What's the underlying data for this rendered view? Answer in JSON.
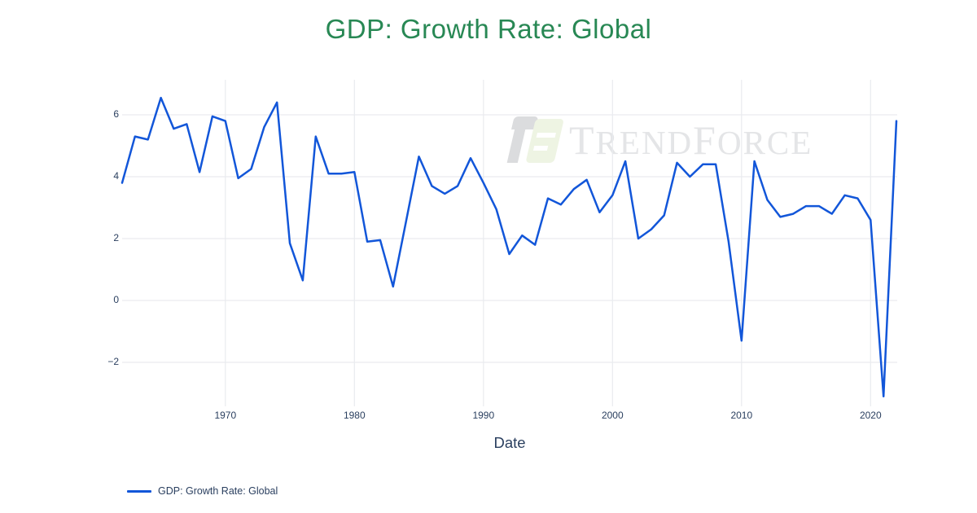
{
  "title": {
    "text": "GDP: Growth Rate: Global",
    "color": "#288854"
  },
  "watermark": {
    "brand": "TrendForce",
    "segments": {
      "t1": "T",
      "t2": "REND",
      "t3": "F",
      "t4": "ORCE"
    },
    "logo_gray": "#d8d9db",
    "logo_green": "#edf3e1",
    "text_color": "#e4e5e7"
  },
  "legend": {
    "label": "GDP: Growth Rate: Global",
    "line_color": "#1256d9"
  },
  "axes": {
    "x_label": "Date"
  },
  "chart_data": {
    "type": "line",
    "title": "GDP: Growth Rate: Global",
    "xlabel": "Date",
    "ylabel": "",
    "grid": true,
    "grid_color": "#e9ebef",
    "tick_label_color": "#2a3f5f",
    "legend_position": "bottom-left",
    "x_ticks": [
      1970,
      1980,
      1990,
      2000,
      2010,
      2020
    ],
    "y_ticks": [
      6,
      4,
      2,
      0,
      -2
    ],
    "x_range_years": [
      1961,
      2021
    ],
    "y_range": [
      -3.2,
      7.1
    ],
    "series": [
      {
        "name": "GDP: Growth Rate: Global",
        "color": "#1256d9",
        "x": [
          1961,
          1962,
          1963,
          1964,
          1965,
          1966,
          1967,
          1968,
          1969,
          1970,
          1971,
          1972,
          1973,
          1974,
          1975,
          1976,
          1977,
          1978,
          1979,
          1980,
          1981,
          1982,
          1983,
          1984,
          1985,
          1986,
          1987,
          1988,
          1989,
          1990,
          1991,
          1992,
          1993,
          1994,
          1995,
          1996,
          1997,
          1998,
          1999,
          2000,
          2001,
          2002,
          2003,
          2004,
          2005,
          2006,
          2007,
          2008,
          2009,
          2010,
          2011,
          2012,
          2013,
          2014,
          2015,
          2016,
          2017,
          2018,
          2019,
          2020,
          2021
        ],
        "y": [
          3.8,
          5.3,
          5.2,
          6.55,
          5.55,
          5.7,
          4.15,
          5.95,
          5.8,
          3.95,
          4.25,
          5.6,
          6.4,
          1.85,
          0.65,
          5.3,
          4.1,
          4.1,
          4.15,
          1.9,
          1.95,
          0.45,
          2.55,
          4.65,
          3.7,
          3.45,
          3.7,
          4.6,
          3.8,
          2.95,
          1.5,
          2.1,
          1.8,
          3.3,
          3.1,
          3.6,
          3.9,
          2.85,
          3.4,
          4.5,
          2.0,
          2.3,
          2.75,
          4.45,
          4.0,
          4.4,
          4.4,
          1.9,
          -1.3,
          4.5,
          3.25,
          2.7,
          2.8,
          3.05,
          3.05,
          2.8,
          3.4,
          3.3,
          2.6,
          -3.1,
          5.8
        ]
      }
    ]
  }
}
